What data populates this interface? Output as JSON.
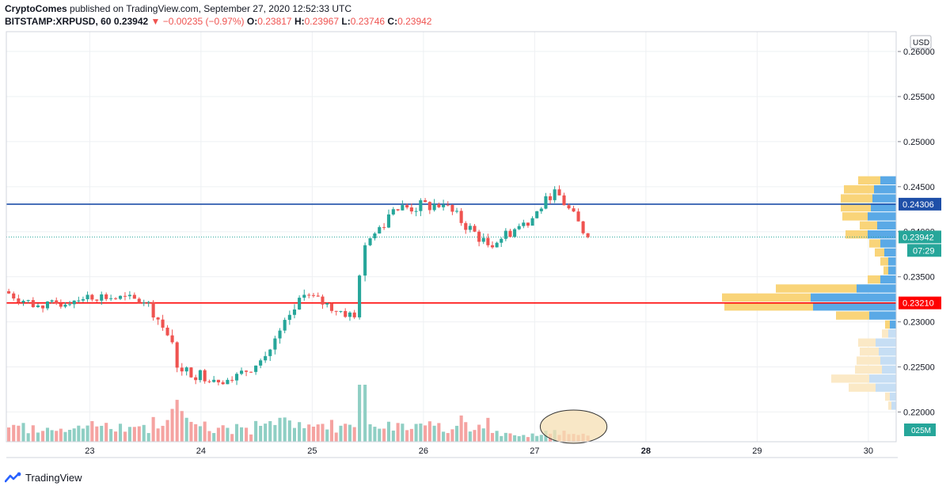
{
  "header": {
    "author": "CryptoComes",
    "published_text": "published on TradingView.com, September 27, 2020 12:52:33 UTC"
  },
  "ohlc": {
    "symbol": "BITSTAMP:XRPUSD, 60",
    "last": "0.23942",
    "arrow": "▼",
    "change": "−0.00235 (−0.97%)",
    "o_label": "O:",
    "o": "0.23817",
    "h_label": "H:",
    "h": "0.23967",
    "l_label": "L:",
    "l": "0.23746",
    "c_label": "C:",
    "c": "0.23942"
  },
  "price_scale": {
    "currency": "USD",
    "current_price_tag": "0.23942",
    "countdown": "07:29",
    "blue_line_tag": "0.24306",
    "red_line_tag": "0.23210",
    "volume_tag": "025M"
  },
  "footer": {
    "brand": "TradingView",
    "icon": "tradingview-logo-icon"
  },
  "colors": {
    "up": "#26a69a",
    "down": "#ef5350",
    "vol_up": "#8fcfc4",
    "vol_down": "#f5a3a1",
    "blue_line": "#1e4fa8",
    "red_line": "#ff0000",
    "vp_blue": "#5aa9e6",
    "vp_blue_light": "#c6def4",
    "vp_yellow": "#f9d479",
    "vp_yellow_light": "#fbe9c6",
    "current_tag": "#26a69a",
    "ellipse_fill": "#f6dfb3"
  },
  "chart_data": {
    "type": "candlestick",
    "instrument": "BITSTAMP:XRPUSD",
    "timeframe": "60",
    "x_tick_labels": [
      "23",
      "24",
      "25",
      "26",
      "27",
      "28",
      "29",
      "30"
    ],
    "x_range_days": [
      22.25,
      30.25
    ],
    "y_tick_labels": [
      "0.26000",
      "0.25500",
      "0.25000",
      "0.24500",
      "0.24000",
      "0.23500",
      "0.23000",
      "0.22500",
      "0.22000"
    ],
    "y_range": [
      0.2167,
      0.2622
    ],
    "last_price": 0.23942,
    "horizontal_lines": [
      {
        "price": 0.24306,
        "color": "blue"
      },
      {
        "price": 0.2321,
        "color": "red"
      }
    ],
    "segments": [
      {
        "from_day": 22.25,
        "to_day": 22.6,
        "open": 0.2334,
        "close": 0.2315,
        "noise": 0.0008
      },
      {
        "from_day": 22.6,
        "to_day": 23.0,
        "open": 0.2315,
        "close": 0.233,
        "noise": 0.0008
      },
      {
        "from_day": 23.0,
        "to_day": 23.55,
        "open": 0.233,
        "close": 0.2322,
        "noise": 0.0008
      },
      {
        "from_day": 23.55,
        "to_day": 23.72,
        "open": 0.2322,
        "close": 0.2285,
        "noise": 0.001
      },
      {
        "from_day": 23.72,
        "to_day": 23.85,
        "open": 0.2285,
        "close": 0.2245,
        "noise": 0.0012
      },
      {
        "from_day": 23.85,
        "to_day": 24.3,
        "open": 0.2245,
        "close": 0.2235,
        "noise": 0.0009
      },
      {
        "from_day": 24.3,
        "to_day": 24.6,
        "open": 0.2235,
        "close": 0.2262,
        "noise": 0.0009
      },
      {
        "from_day": 24.6,
        "to_day": 24.95,
        "open": 0.2262,
        "close": 0.233,
        "noise": 0.001
      },
      {
        "from_day": 24.95,
        "to_day": 25.4,
        "open": 0.233,
        "close": 0.2305,
        "noise": 0.0008
      },
      {
        "from_day": 25.4,
        "to_day": 25.5,
        "open": 0.2305,
        "close": 0.2385,
        "noise": 0.0012
      },
      {
        "from_day": 25.5,
        "to_day": 25.75,
        "open": 0.2385,
        "close": 0.2425,
        "noise": 0.001
      },
      {
        "from_day": 25.75,
        "to_day": 26.2,
        "open": 0.2425,
        "close": 0.243,
        "noise": 0.001
      },
      {
        "from_day": 26.2,
        "to_day": 26.6,
        "open": 0.243,
        "close": 0.2385,
        "noise": 0.0009
      },
      {
        "from_day": 26.6,
        "to_day": 27.0,
        "open": 0.2385,
        "close": 0.2415,
        "noise": 0.0008
      },
      {
        "from_day": 27.0,
        "to_day": 27.2,
        "open": 0.2415,
        "close": 0.2447,
        "noise": 0.0007
      },
      {
        "from_day": 27.2,
        "to_day": 27.5,
        "open": 0.2447,
        "close": 0.2394,
        "noise": 0.0008
      }
    ],
    "volume_annotation": {
      "shape": "ellipse",
      "from_day": 27.05,
      "to_day": 27.65
    }
  }
}
